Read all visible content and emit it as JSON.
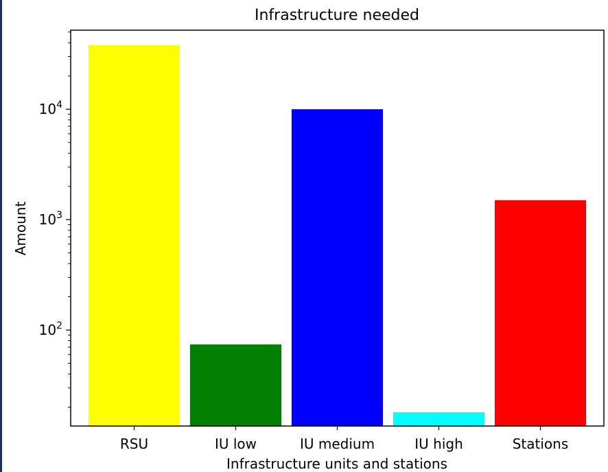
{
  "chart_data": {
    "type": "bar",
    "title": "Infrastructure needed",
    "xlabel": "Infrastructure units and stations",
    "ylabel": "Amount",
    "yscale": "log",
    "ylim": [
      13.5,
      52000
    ],
    "yticks": [
      {
        "value": 100,
        "base": "10",
        "exp": "2"
      },
      {
        "value": 1000,
        "base": "10",
        "exp": "3"
      },
      {
        "value": 10000,
        "base": "10",
        "exp": "4"
      }
    ],
    "categories": [
      "RSU",
      "IU low",
      "IU medium",
      "IU high",
      "Stations"
    ],
    "values": [
      38000,
      74,
      10000,
      18,
      1500
    ],
    "colors": [
      "#ffff00",
      "#008000",
      "#0000ff",
      "#00ffff",
      "#ff0000"
    ],
    "grid": false,
    "legend": "none"
  }
}
